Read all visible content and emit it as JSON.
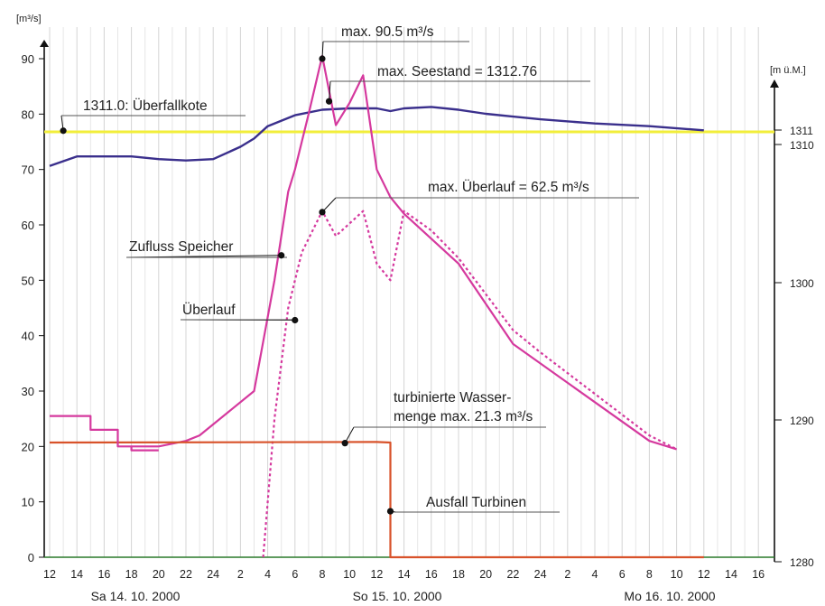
{
  "chart_data": {
    "type": "line",
    "left_axis": {
      "unit": "[m³/s]",
      "range": [
        0,
        95
      ],
      "ticks": [
        0,
        10,
        20,
        30,
        40,
        50,
        60,
        70,
        80,
        90
      ]
    },
    "right_axis": {
      "unit": "[m ü.M.]",
      "range": [
        1280,
        1315
      ],
      "ticks": [
        "1280",
        "1290",
        "1300",
        "1310",
        "1311"
      ]
    },
    "x_axis": {
      "hours_tick_labels": [
        "12",
        "14",
        "16",
        "18",
        "20",
        "22",
        "24",
        "2",
        "4",
        "6",
        "8",
        "10",
        "12",
        "14",
        "16",
        "18",
        "20",
        "22",
        "24",
        "2",
        "4",
        "6",
        "8",
        "10",
        "12",
        "14",
        "16"
      ],
      "day_labels": [
        "Sa 14. 10. 2000",
        "So 15. 10. 2000",
        "Mo 16. 10. 2000"
      ],
      "range": [
        "2000-10-14 12:00",
        "2000-10-16 16:00"
      ]
    },
    "grid": "vertical every hour",
    "overfall_level": {
      "value": 1311.0,
      "color": "#f2ee3a"
    },
    "series": [
      {
        "key": "seestand",
        "axis": "right",
        "color": "#3a2f8c",
        "style": "solid",
        "x": [
          "2000-10-14 12:00",
          "2000-10-14 14:00",
          "2000-10-14 16:00",
          "2000-10-14 18:00",
          "2000-10-14 20:00",
          "2000-10-14 22:00",
          "2000-10-15 00:00",
          "2000-10-15 02:00",
          "2000-10-15 03:00",
          "2000-10-15 04:00",
          "2000-10-15 06:00",
          "2000-10-15 08:00",
          "2000-10-15 10:00",
          "2000-10-15 12:00",
          "2000-10-15 13:00",
          "2000-10-15 14:00",
          "2000-10-15 16:00",
          "2000-10-15 18:00",
          "2000-10-15 20:00",
          "2000-10-15 22:00",
          "2000-10-16 00:00",
          "2000-10-16 04:00",
          "2000-10-16 08:00",
          "2000-10-16 12:00"
        ],
        "values": [
          1308.5,
          1309.2,
          1309.2,
          1309.2,
          1309.0,
          1308.9,
          1309.0,
          1309.9,
          1310.5,
          1311.4,
          1312.2,
          1312.6,
          1312.7,
          1312.7,
          1312.5,
          1312.7,
          1312.8,
          1312.6,
          1312.3,
          1312.1,
          1311.9,
          1311.6,
          1311.4,
          1311.1
        ]
      },
      {
        "key": "zufluss",
        "axis": "left",
        "color": "#d5399e",
        "style": "solid",
        "x": [
          "2000-10-14 18:00",
          "2000-10-14 20:00",
          "2000-10-14 22:00",
          "2000-10-14 23:00",
          "2000-10-15 03:00",
          "2000-10-15 04:30",
          "2000-10-15 05:30",
          "2000-10-15 06:00",
          "2000-10-15 07:00",
          "2000-10-15 08:00",
          "2000-10-15 09:00",
          "2000-10-15 10:00",
          "2000-10-15 11:00",
          "2000-10-15 12:00",
          "2000-10-15 13:00",
          "2000-10-15 14:00",
          "2000-10-15 18:00",
          "2000-10-15 22:00",
          "2000-10-16 08:00",
          "2000-10-16 10:00"
        ],
        "values": [
          20.0,
          20.0,
          21.0,
          22.0,
          30.0,
          50.0,
          66.0,
          70.0,
          80.0,
          90.5,
          78.0,
          82.0,
          87.0,
          70.0,
          65.0,
          62.0,
          53.0,
          38.5,
          21.0,
          19.5
        ]
      },
      {
        "key": "ueberlauf",
        "axis": "left",
        "color": "#d5399e",
        "style": "dotted",
        "x": [
          "2000-10-15 03:40",
          "2000-10-15 04:30",
          "2000-10-15 05:30",
          "2000-10-15 06:30",
          "2000-10-15 08:00",
          "2000-10-15 09:00",
          "2000-10-15 11:00",
          "2000-10-15 12:00",
          "2000-10-15 13:00",
          "2000-10-15 14:00",
          "2000-10-15 16:00",
          "2000-10-15 18:00",
          "2000-10-15 22:00",
          "2000-10-16 00:00",
          "2000-10-16 08:00",
          "2000-10-16 10:00"
        ],
        "values": [
          0,
          25.0,
          45.0,
          55.0,
          62.5,
          58.0,
          62.5,
          53.0,
          50.0,
          62.5,
          59.0,
          54.0,
          41.0,
          37.0,
          22.0,
          19.5
        ]
      },
      {
        "key": "turbiniert",
        "axis": "left",
        "color": "#d8522a",
        "style": "solid",
        "x": [
          "2000-10-14 12:00",
          "2000-10-15 12:00",
          "2000-10-15 13:00",
          "2000-10-15 13:00",
          "2000-10-16 12:00"
        ],
        "values": [
          20.7,
          20.8,
          20.7,
          0,
          0
        ]
      },
      {
        "key": "turbiniert_bedarf",
        "axis": "left",
        "color": "#d5399e",
        "style": "step",
        "x": [
          "2000-10-14 12:00",
          "2000-10-14 15:00",
          "2000-10-14 15:00",
          "2000-10-14 17:00",
          "2000-10-14 17:00",
          "2000-10-14 18:00",
          "2000-10-14 18:00",
          "2000-10-14 20:00"
        ],
        "values": [
          25.5,
          25.5,
          23.0,
          23.0,
          20.0,
          20.0,
          19.3,
          19.3
        ]
      }
    ],
    "annotations": [
      {
        "key": "ueberfallkote",
        "text": "1311.0: Überfallkote",
        "dot_x": "2000-10-14 13:00",
        "dot_y": 77,
        "axis": "left"
      },
      {
        "key": "max_q",
        "text": "max. 90.5 m³/s",
        "dot_x": "2000-10-15 08:00",
        "dot_y": 90,
        "axis": "left"
      },
      {
        "key": "max_see",
        "text": "max. Seestand =  1312.76",
        "dot_x": "2000-10-15 08:30",
        "dot_y": 82.3,
        "axis": "left"
      },
      {
        "key": "max_ueberlauf",
        "text": "max. Überlauf =  62.5 m³/s",
        "dot_x": "2000-10-15 08:00",
        "dot_y": 62.3,
        "axis": "left"
      },
      {
        "key": "zufluss",
        "text": "Zufluss Speicher",
        "dot_x": "2000-10-15 05:00",
        "dot_y": 54.5,
        "axis": "left"
      },
      {
        "key": "ueberlauf",
        "text": "Überlauf",
        "dot_x": "2000-10-15 06:00",
        "dot_y": 42.8,
        "axis": "left"
      },
      {
        "key": "turbiniert",
        "text_lines": [
          "turbinierte Wasser-",
          "menge max. 21.3 m³/s"
        ],
        "dot_x": "2000-10-15 09:40",
        "dot_y": 20.6,
        "axis": "left"
      },
      {
        "key": "ausfall",
        "text": "Ausfall Turbinen",
        "dot_x": "2000-10-15 13:00",
        "dot_y": 8.3,
        "axis": "left"
      }
    ]
  }
}
